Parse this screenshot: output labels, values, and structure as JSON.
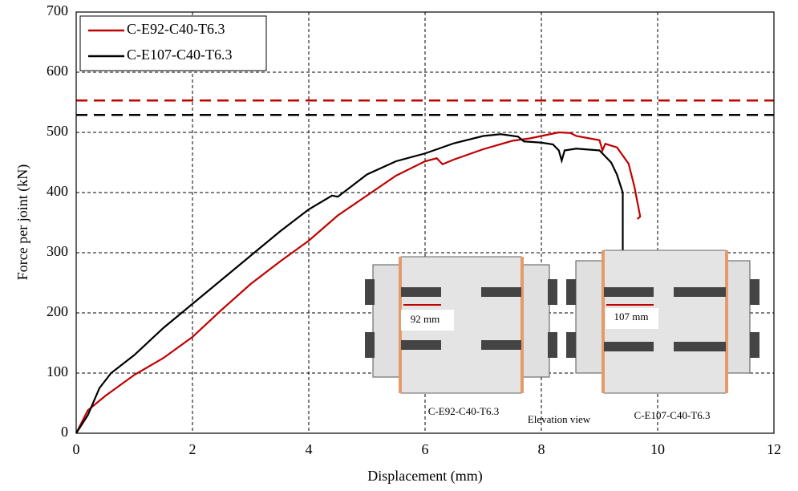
{
  "chart_data": {
    "type": "line",
    "x_label": "Displacement (mm)",
    "y_label": "Force per joint (kN)",
    "xlim": [
      0,
      12
    ],
    "xticks": [
      0,
      2,
      4,
      6,
      8,
      10,
      12
    ],
    "ylim": [
      0,
      700
    ],
    "yticks": [
      0,
      100,
      200,
      300,
      400,
      500,
      600,
      700
    ],
    "grid": true,
    "legend": "upper left",
    "series": [
      {
        "name": "C-E92-C40-T6.3",
        "color": "#c00000",
        "x": [
          0,
          0.2,
          0.5,
          1,
          1.5,
          2,
          2.5,
          3,
          3.5,
          4,
          4.5,
          5,
          5.5,
          6,
          6.2,
          6.3,
          6.5,
          7,
          7.5,
          7.8,
          8,
          8.3,
          8.5,
          8.6,
          9,
          9.05,
          9.1,
          9.3,
          9.5,
          9.6,
          9.7,
          9.65
        ],
        "values": [
          0,
          38,
          62,
          97,
          125,
          160,
          205,
          248,
          285,
          320,
          362,
          395,
          428,
          452,
          457,
          447,
          455,
          472,
          486,
          490,
          494,
          500,
          499,
          494,
          487,
          470,
          481,
          475,
          448,
          410,
          360,
          356
        ]
      },
      {
        "name": "C-E107-C40-T6.3",
        "color": "#000000",
        "x": [
          0,
          0.2,
          0.4,
          0.6,
          1,
          1.5,
          2,
          2.5,
          3,
          3.5,
          4,
          4.4,
          4.5,
          5,
          5.5,
          6,
          6.5,
          7,
          7.3,
          7.6,
          7.7,
          8,
          8.2,
          8.3,
          8.35,
          8.4,
          8.6,
          9,
          9.1,
          9.2,
          9.3,
          9.4,
          9.4
        ],
        "values": [
          0,
          30,
          75,
          100,
          130,
          175,
          215,
          255,
          295,
          335,
          372,
          395,
          393,
          430,
          452,
          465,
          482,
          494,
          497,
          493,
          485,
          483,
          480,
          470,
          453,
          470,
          473,
          470,
          460,
          450,
          430,
          400,
          300
        ]
      }
    ],
    "reference_lines": [
      {
        "value": 553,
        "color": "#c00000"
      },
      {
        "value": 529,
        "color": "#000000"
      }
    ],
    "annotations": [
      "92 mm",
      "107 mm",
      "C-E92-C40-T6.3",
      "Elevation view",
      "C-E107-C40-T6.3"
    ]
  }
}
